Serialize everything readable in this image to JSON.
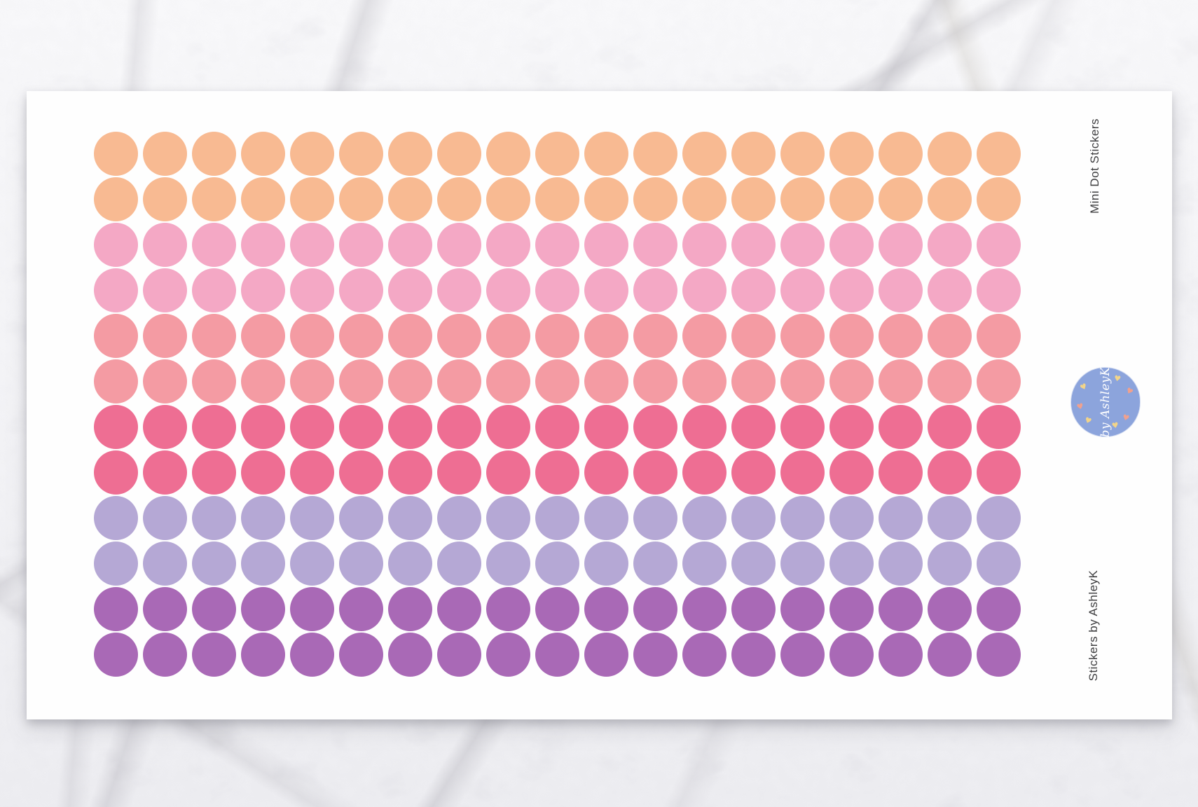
{
  "scene": {
    "surface": "white-gray marble",
    "sheet_background": "#fefefe"
  },
  "sheet": {
    "label_top_right": "Mini Dot Stickers",
    "label_bottom_right": "Stickers by AshleyK",
    "label_color": "#3e3e40",
    "grid": {
      "columns": 19,
      "rows_per_color": 2,
      "total_rows": 12,
      "total_dots": 228,
      "dot_colors": [
        {
          "name": "peach",
          "hex": "#f8ba92"
        },
        {
          "name": "pink",
          "hex": "#f4a8c5"
        },
        {
          "name": "salmon",
          "hex": "#f49ba3"
        },
        {
          "name": "raspberry",
          "hex": "#ee6e93"
        },
        {
          "name": "lavender",
          "hex": "#b5a8d5"
        },
        {
          "name": "purple",
          "hex": "#a969b6"
        }
      ]
    },
    "logo": {
      "text": "by AshleyK",
      "badge_color": "#8ca4dc",
      "text_color": "#ffffff",
      "hearts": [
        {
          "angle": -146,
          "tilt": -25,
          "color": "#f2d489"
        },
        {
          "angle": -62,
          "tilt": 10,
          "color": "#f2d489"
        },
        {
          "angle": -24,
          "tilt": 30,
          "color": "#f0a18e"
        },
        {
          "angle": 39,
          "tilt": 15,
          "color": "#f0a18e"
        },
        {
          "angle": 67,
          "tilt": -10,
          "color": "#f2d489"
        },
        {
          "angle": 133,
          "tilt": 20,
          "color": "#f2d489"
        },
        {
          "angle": 169,
          "tilt": -15,
          "color": "#f0a18e"
        }
      ]
    }
  }
}
